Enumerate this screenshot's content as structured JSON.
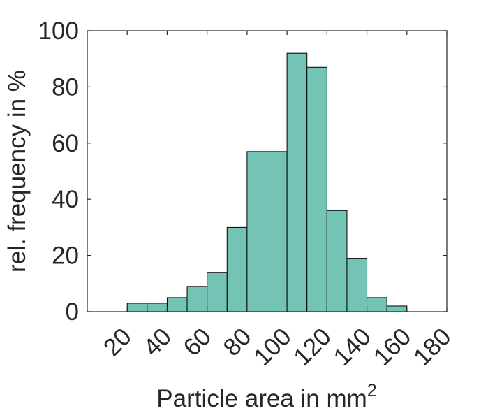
{
  "chart_data": {
    "type": "bar",
    "subtype": "histogram",
    "xlabel": "Particle area in mm",
    "xlabel_superscript": "2",
    "ylabel": "rel. frequency in %",
    "xlim": [
      0,
      180
    ],
    "ylim": [
      0,
      100
    ],
    "xticks": [
      "20",
      "40",
      "60",
      "80",
      "100",
      "120",
      "140",
      "160",
      "180"
    ],
    "yticks": [
      "0",
      "20",
      "40",
      "60",
      "80",
      "100"
    ],
    "bin_width": 10,
    "bin_starts": [
      20,
      30,
      40,
      50,
      60,
      70,
      80,
      90,
      100,
      110,
      120,
      130,
      140,
      150
    ],
    "values": [
      3,
      3,
      5,
      9,
      14,
      30,
      57,
      57,
      92,
      87,
      36,
      19,
      5,
      2
    ],
    "bar_color": "#74c4b5",
    "edge_color": "#000000",
    "grid": false
  }
}
